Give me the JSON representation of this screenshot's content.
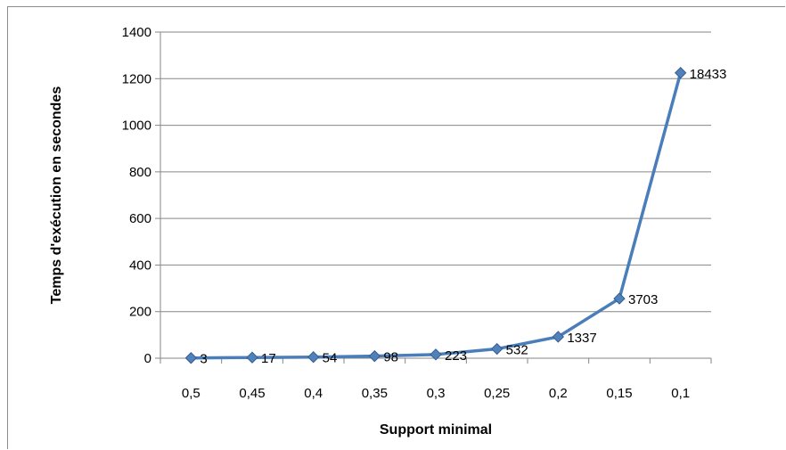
{
  "chart_data": {
    "type": "line",
    "title": "",
    "xlabel": "Support minimal",
    "ylabel": "Temps d'exécution en secondes",
    "categories": [
      "0,5",
      "0,45",
      "0,4",
      "0,35",
      "0,3",
      "0,25",
      "0,2",
      "0,15",
      "0,1"
    ],
    "series": [
      {
        "values": [
          1,
          3,
          5,
          9,
          16,
          40,
          92,
          256,
          1225
        ],
        "labels": [
          "3",
          "17",
          "54",
          "98",
          "223",
          "532",
          "1337",
          "3703",
          "18433"
        ]
      }
    ],
    "ylim": [
      0,
      1400
    ],
    "yticks": [
      0,
      200,
      400,
      600,
      800,
      1000,
      1200,
      1400
    ],
    "grid": true,
    "legend": "none",
    "colors": {
      "line": "#4a7ebb",
      "marker": "#4f81bd",
      "marker_edge": "#385d8a",
      "grid": "#868686",
      "axis": "#868686"
    }
  }
}
